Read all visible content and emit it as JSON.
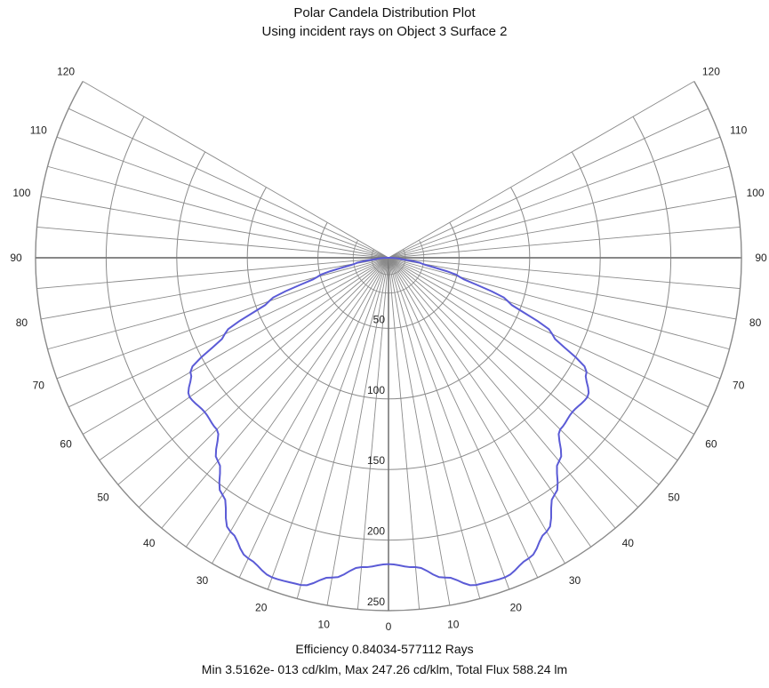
{
  "chart_data": {
    "type": "line",
    "subtype": "polar",
    "title": "Polar Candela Distribution Plot",
    "subtitle": "Using incident rays on Object 3 Surface 2",
    "footer_line1": "Efficiency 0.84034-577112  Rays",
    "footer_line2": "Min 3.5162e- 013 cd/klm, Max 247.26   cd/klm, Total Flux 588.24 lm",
    "angle_ticks": [
      0,
      10,
      20,
      30,
      40,
      50,
      60,
      70,
      80,
      90,
      100,
      110,
      120
    ],
    "radial_ticks": [
      50,
      100,
      150,
      200,
      250
    ],
    "radial_range": [
      0,
      250
    ],
    "angle_range_deg": [
      -120,
      120
    ],
    "grid": true,
    "line_color": "#5b5bd6",
    "grid_color": "#8a8a8a",
    "axis_color": "#777777",
    "series": [
      {
        "angles_deg": [
          0,
          5,
          10,
          15,
          20,
          25,
          30,
          35,
          40,
          45,
          50,
          55,
          60,
          65,
          70,
          75,
          80,
          85,
          90
        ],
        "values": [
          217,
          220,
          230,
          240,
          241,
          235,
          224,
          205,
          188,
          172,
          170,
          172,
          162,
          128,
          90,
          52,
          24,
          8,
          0
        ]
      }
    ]
  }
}
